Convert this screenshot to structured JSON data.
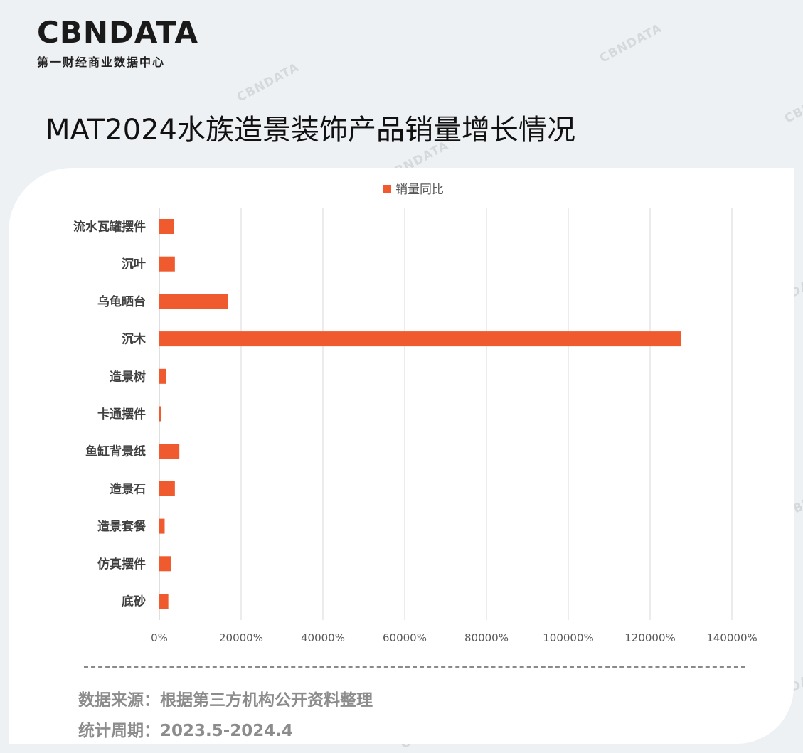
{
  "brand": {
    "logo_text": "CBNDATA",
    "logo_subtitle": "第一财经商业数据中心",
    "watermark": "CBNDATA"
  },
  "title": "MAT2024水族造景装饰产品销量增长情况",
  "footer": {
    "source": "数据来源：根据第三方机构公开资料整理",
    "period": "统计周期：2023.5-2024.4"
  },
  "colors": {
    "bar": "#f05a2f",
    "grid": "#d9d9d9",
    "card": "#ffffff",
    "background": "#eef1f4"
  },
  "chart_data": {
    "type": "bar",
    "orientation": "horizontal",
    "categories": [
      "流水瓦罐摆件",
      "沉叶",
      "乌龟晒台",
      "沉木",
      "造景树",
      "卡通摆件",
      "鱼缸背景纸",
      "造景石",
      "造景套餐",
      "仿真摆件",
      "底砂"
    ],
    "series": [
      {
        "name": "销量同比",
        "values": [
          3600,
          3800,
          16700,
          127600,
          1600,
          400,
          4900,
          3800,
          1300,
          2900,
          2200
        ]
      }
    ],
    "xlim": [
      0,
      140000
    ],
    "xticks": [
      "0%",
      "20000%",
      "40000%",
      "60000%",
      "80000%",
      "100000%",
      "120000%",
      "140000%"
    ],
    "value_unit": "%",
    "legend": "top-center",
    "grid": true
  }
}
